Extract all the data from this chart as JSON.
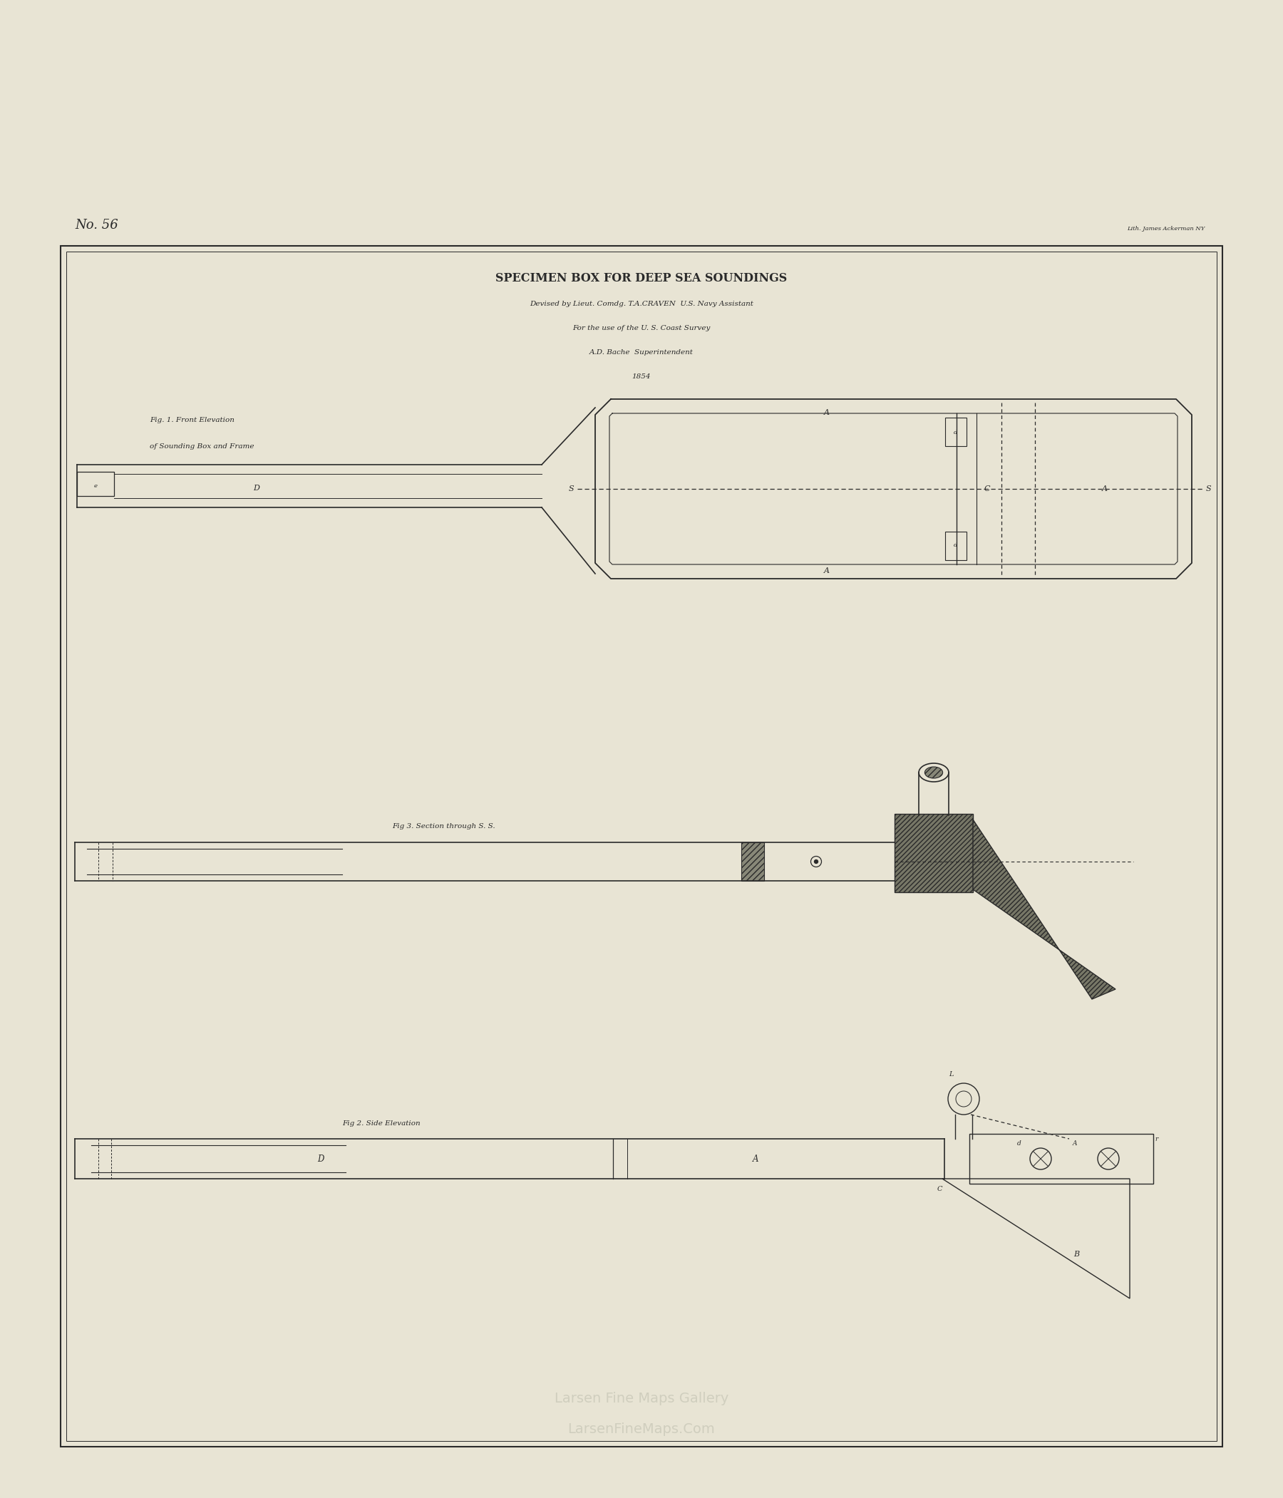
{
  "bg_color": "#e8e4d4",
  "paper_color": "#ddd9c8",
  "line_color": "#2a2a2a",
  "title1": "SPECIMEN BOX FOR DEEP SEA SOUNDINGS",
  "title2": "Devised by Lieut. Comdg. T.A.CRAVEN  U.S. Navy Assistant",
  "title3": "For the use of the U. S. Coast Survey",
  "title4": "A.D. Bache  Superintendent",
  "title5": "1854",
  "page_num": "No. 56",
  "litho": "Lith. James Ackerman NY",
  "fig1_label": "Fig. 1. Front Elevation",
  "fig1_sublabel": "of Sounding Box and Frame",
  "fig3_label": "Fig 3. Section through S. S.",
  "fig2_label": "Fig 2. Side Elevation",
  "watermark1": "Larsen Fine Maps Gallery",
  "watermark2": "LarsenFineMaps.Com"
}
